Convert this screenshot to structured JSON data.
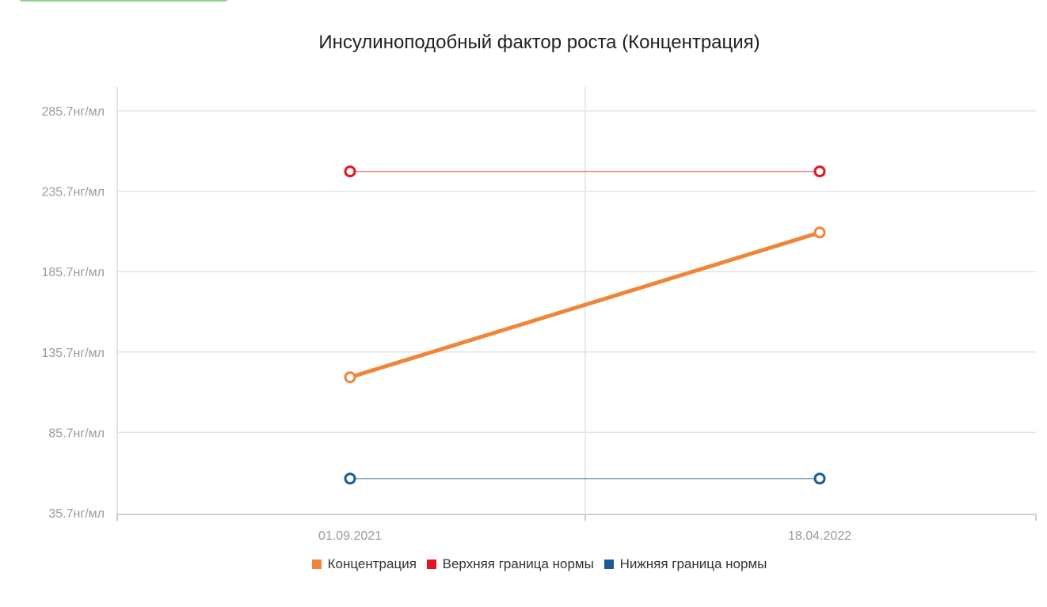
{
  "chart_data": {
    "type": "line",
    "title": "Инсулиноподобный фактор роста (Концентрация)",
    "categories": [
      "01.09.2021",
      "18.04.2022"
    ],
    "y_ticks": [
      "285.7нг/мл",
      "235.7нг/мл",
      "185.7нг/мл",
      "135.7нг/мл",
      "85.7нг/мл",
      "35.7нг/мл"
    ],
    "ylim": [
      35.7,
      285.7
    ],
    "grid": true,
    "legend_position": "bottom",
    "series": [
      {
        "name": "Концентрация",
        "color": "#f0853a",
        "values": [
          120,
          210
        ]
      },
      {
        "name": "Верхняя граница нормы",
        "color": "#e3151f",
        "values": [
          248,
          248
        ]
      },
      {
        "name": "Нижняя граница нормы",
        "color": "#1a5c99",
        "values": [
          57,
          57
        ]
      }
    ]
  }
}
